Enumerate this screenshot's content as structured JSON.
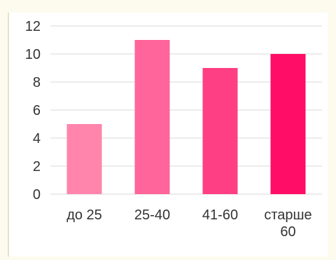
{
  "chart_data": {
    "type": "bar",
    "title": "",
    "xlabel": "",
    "ylabel": "",
    "categories": [
      "до 25",
      "25-40",
      "41-60",
      "старше 60"
    ],
    "category_label_lines": [
      [
        "до 25"
      ],
      [
        "25-40"
      ],
      [
        "41-60"
      ],
      [
        "старше",
        "60"
      ]
    ],
    "values": [
      5,
      11,
      9,
      10
    ],
    "ylim": [
      0,
      12
    ],
    "yticks": [
      "0",
      "2",
      "4",
      "6",
      "8",
      "10",
      "12"
    ],
    "grid": true,
    "legend": "none",
    "colors": {
      "bars": [
        "#ff85ad",
        "#ff659a",
        "#ff3f83",
        "#ff0d66"
      ],
      "grid": "#d9d9d9",
      "background": "#ffffff"
    }
  }
}
